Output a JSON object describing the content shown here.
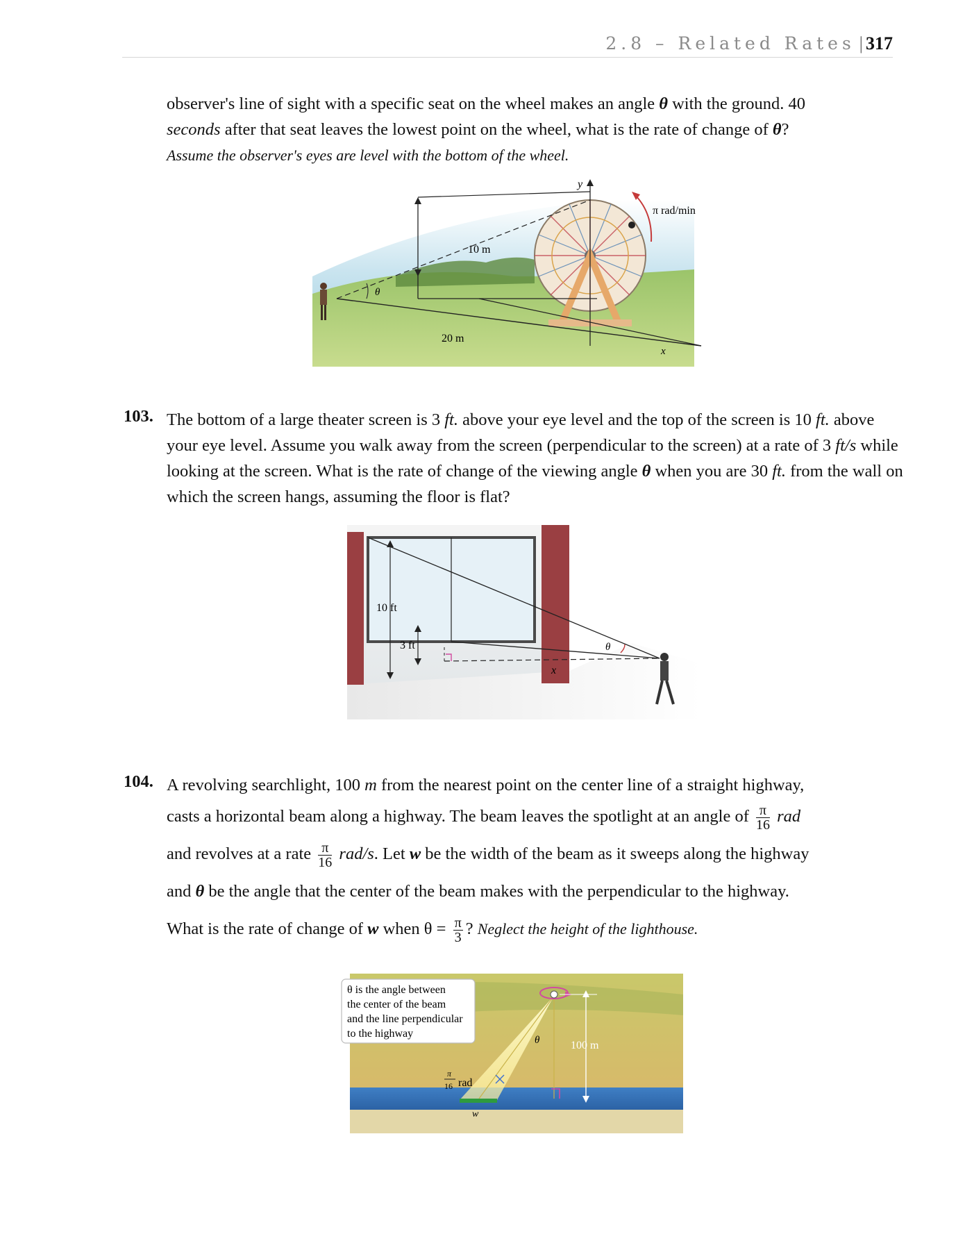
{
  "header": {
    "section": "2.8 – Related Rates",
    "separator": "|",
    "page_number": "317"
  },
  "problem_102_continued": {
    "text_a": "observer's line of sight with a specific seat on the wheel makes an angle",
    "theta": "θ",
    "text_b": "with the ground. 40",
    "seconds": "seconds",
    "text_c": "after that seat leaves the lowest point on the wheel, what is the rate of change of",
    "text_d": "?",
    "note": "Assume the observer's eyes are level with the bottom of the wheel.",
    "figure": {
      "label_y": "y",
      "label_rate": "π rad/min",
      "label_10m": "10 m",
      "label_theta": "θ",
      "label_20m": "20 m",
      "label_x": "x"
    }
  },
  "problem_103": {
    "number": "103.",
    "t1": "The bottom of a large theater screen is 3",
    "ft1": "ft.",
    "t2": "above your eye level and the top of the screen is 10",
    "ft2": "ft.",
    "t3": "above your eye level. Assume you walk away from the screen (perpendicular to the screen) at a rate of 3",
    "fts": "ft/s",
    "t4": "while looking at the screen. What is the rate of change of the viewing angle",
    "theta": "θ",
    "t5": "when you are 30",
    "ft3": "ft.",
    "t6": "from the wall on which the screen hangs, assuming the floor is flat?",
    "figure": {
      "label_10ft": "10 ft",
      "label_3ft": "3 ft",
      "label_theta": "θ",
      "label_x": "x"
    }
  },
  "problem_104": {
    "number": "104.",
    "t1": "A revolving searchlight, 100",
    "m": "m",
    "t2": "from the nearest point on the center line of a straight highway,",
    "t3": "casts a horizontal beam along a highway. The beam leaves the spotlight at an angle of",
    "frac_num": "π",
    "frac_den": "16",
    "rad": "rad",
    "t4": "and revolves at a rate",
    "rads": "rad/s",
    "t5": ". Let",
    "w": "w",
    "t6": "be the width of the beam as it sweeps along the highway",
    "t7": "and",
    "theta": "θ",
    "t8": "be the angle that the center of the beam makes with the perpendicular to the highway.",
    "t9": "What is the rate of change of",
    "t10": "when θ =",
    "frac3_num": "π",
    "frac3_den": "3",
    "t11": "?",
    "note": "Neglect the height of the lighthouse.",
    "figure": {
      "callout_1": "θ is the angle between",
      "callout_2": "the center of the beam",
      "callout_3": "and the line perpendicular",
      "callout_4": "to the highway",
      "label_theta": "θ",
      "label_100m": "100 m",
      "label_pi": "π",
      "label_16": "16",
      "label_rad": "rad",
      "label_w": "w"
    }
  }
}
